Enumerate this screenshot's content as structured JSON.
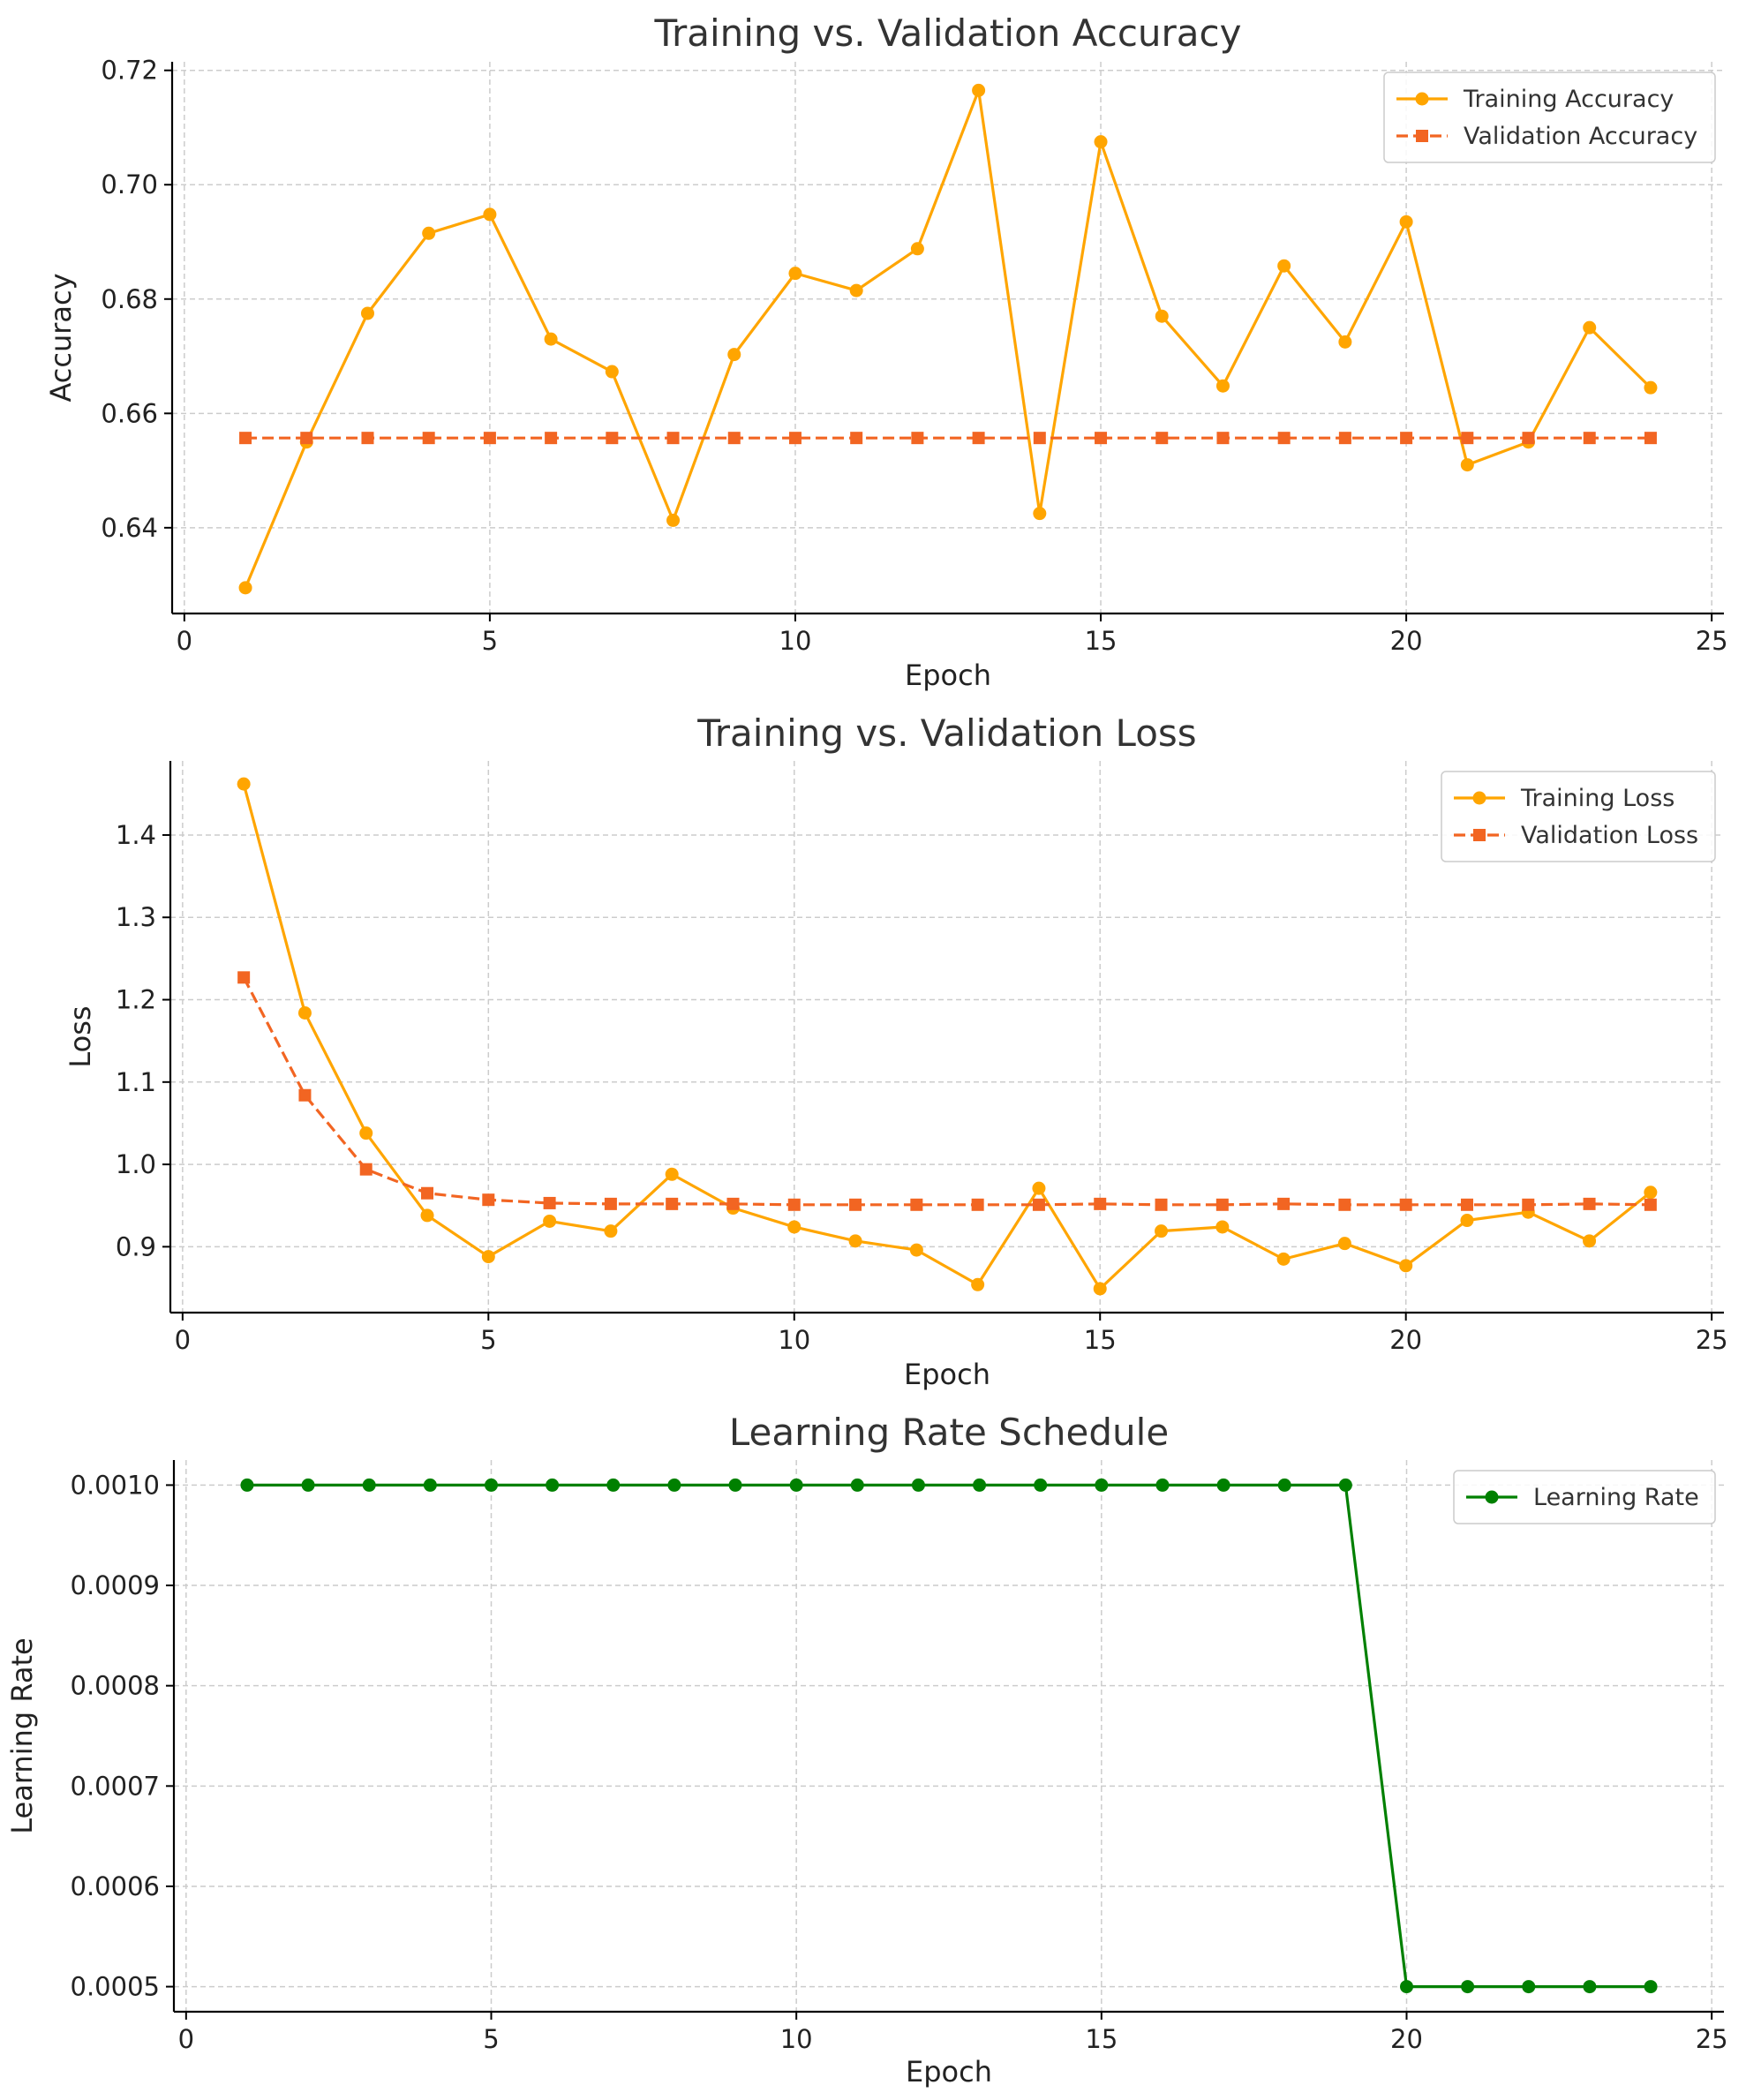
{
  "chart_data": [
    {
      "type": "line",
      "title": "Training vs. Validation Accuracy",
      "xlabel": "Epoch",
      "ylabel": "Accuracy",
      "xlim": [
        -0.2,
        25.2
      ],
      "ylim": [
        0.625,
        0.7215
      ],
      "xticks": [
        0,
        5,
        10,
        15,
        20,
        25
      ],
      "xtick_labels": [
        "0",
        "5",
        "10",
        "15",
        "20",
        "25"
      ],
      "yticks": [
        0.64,
        0.66,
        0.68,
        0.7,
        0.72
      ],
      "ytick_labels": [
        "0.64",
        "0.66",
        "0.68",
        "0.70",
        "0.72"
      ],
      "grid": true,
      "legend_position": "top-right",
      "x": [
        1,
        2,
        3,
        4,
        5,
        6,
        7,
        8,
        9,
        10,
        11,
        12,
        13,
        14,
        15,
        16,
        17,
        18,
        19,
        20,
        21,
        22,
        23,
        24
      ],
      "series": [
        {
          "name": "Training Accuracy",
          "color": "#FFA500",
          "line_style": "solid",
          "marker": "circle",
          "values": [
            0.6295,
            0.655,
            0.6775,
            0.6915,
            0.6948,
            0.673,
            0.6673,
            0.6413,
            0.6703,
            0.6845,
            0.6815,
            0.6888,
            0.7165,
            0.6425,
            0.7075,
            0.677,
            0.6648,
            0.6858,
            0.6725,
            0.6935,
            0.651,
            0.655,
            0.675,
            0.6645
          ]
        },
        {
          "name": "Validation Accuracy",
          "color": "#F26522",
          "line_style": "dashed",
          "marker": "square",
          "values": [
            0.6557,
            0.6557,
            0.6557,
            0.6557,
            0.6557,
            0.6557,
            0.6557,
            0.6557,
            0.6557,
            0.6557,
            0.6557,
            0.6557,
            0.6557,
            0.6557,
            0.6557,
            0.6557,
            0.6557,
            0.6557,
            0.6557,
            0.6557,
            0.6557,
            0.6557,
            0.6557,
            0.6557
          ]
        }
      ]
    },
    {
      "type": "line",
      "title": "Training vs. Validation Loss",
      "xlabel": "Epoch",
      "ylabel": "Loss",
      "xlim": [
        -0.2,
        25.2
      ],
      "ylim": [
        0.82,
        1.49
      ],
      "xticks": [
        0,
        5,
        10,
        15,
        20,
        25
      ],
      "xtick_labels": [
        "0",
        "5",
        "10",
        "15",
        "20",
        "25"
      ],
      "yticks": [
        0.9,
        1.0,
        1.1,
        1.2,
        1.3,
        1.4
      ],
      "ytick_labels": [
        "0.9",
        "1.0",
        "1.1",
        "1.2",
        "1.3",
        "1.4"
      ],
      "grid": true,
      "legend_position": "top-right",
      "x": [
        1,
        2,
        3,
        4,
        5,
        6,
        7,
        8,
        9,
        10,
        11,
        12,
        13,
        14,
        15,
        16,
        17,
        18,
        19,
        20,
        21,
        22,
        23,
        24
      ],
      "series": [
        {
          "name": "Training Loss",
          "color": "#FFA500",
          "line_style": "solid",
          "marker": "circle",
          "values": [
            1.462,
            1.184,
            1.038,
            0.938,
            0.888,
            0.931,
            0.919,
            0.988,
            0.947,
            0.924,
            0.907,
            0.896,
            0.854,
            0.971,
            0.849,
            0.919,
            0.924,
            0.885,
            0.904,
            0.877,
            0.932,
            0.942,
            0.907,
            0.966
          ]
        },
        {
          "name": "Validation Loss",
          "color": "#F26522",
          "line_style": "dashed",
          "marker": "square",
          "values": [
            1.227,
            1.084,
            0.994,
            0.965,
            0.957,
            0.953,
            0.952,
            0.952,
            0.952,
            0.951,
            0.951,
            0.951,
            0.951,
            0.951,
            0.952,
            0.951,
            0.951,
            0.952,
            0.951,
            0.951,
            0.951,
            0.951,
            0.952,
            0.951
          ]
        }
      ]
    },
    {
      "type": "line",
      "title": "Learning Rate Schedule",
      "xlabel": "Epoch",
      "ylabel": "Learning Rate",
      "xlim": [
        -0.2,
        25.2
      ],
      "ylim": [
        0.000475,
        0.001025
      ],
      "xticks": [
        0,
        5,
        10,
        15,
        20,
        25
      ],
      "xtick_labels": [
        "0",
        "5",
        "10",
        "15",
        "20",
        "25"
      ],
      "yticks": [
        0.0005,
        0.0006,
        0.0007,
        0.0008,
        0.0009,
        0.001
      ],
      "ytick_labels": [
        "0.0005",
        "0.0006",
        "0.0007",
        "0.0008",
        "0.0009",
        "0.0010"
      ],
      "grid": true,
      "legend_position": "top-right",
      "x": [
        1,
        2,
        3,
        4,
        5,
        6,
        7,
        8,
        9,
        10,
        11,
        12,
        13,
        14,
        15,
        16,
        17,
        18,
        19,
        20,
        21,
        22,
        23,
        24
      ],
      "series": [
        {
          "name": "Learning Rate",
          "color": "#008000",
          "line_style": "solid",
          "marker": "circle",
          "values": [
            0.001,
            0.001,
            0.001,
            0.001,
            0.001,
            0.001,
            0.001,
            0.001,
            0.001,
            0.001,
            0.001,
            0.001,
            0.001,
            0.001,
            0.001,
            0.001,
            0.001,
            0.001,
            0.001,
            0.0005,
            0.0005,
            0.0005,
            0.0005,
            0.0005
          ]
        }
      ]
    }
  ]
}
